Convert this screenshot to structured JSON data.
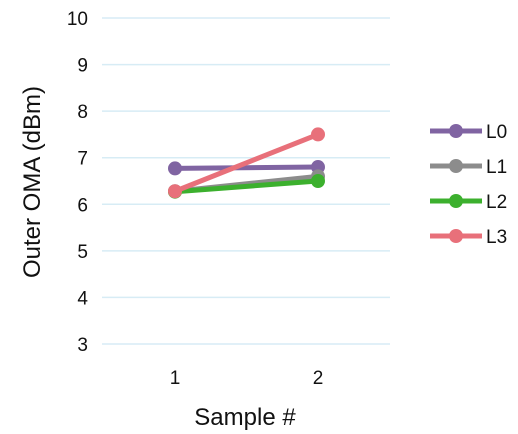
{
  "chart_data": {
    "type": "line",
    "xlabel": "Sample #",
    "ylabel": "Outer OMA (dBm)",
    "x": [
      1,
      2
    ],
    "ylim": [
      3,
      10
    ],
    "yticks": [
      3,
      4,
      5,
      6,
      7,
      8,
      9,
      10
    ],
    "grid": true,
    "legend_position": "right",
    "series": [
      {
        "name": "L0",
        "values": [
          6.77,
          6.8
        ],
        "color": "#8064a2"
      },
      {
        "name": "L1",
        "values": [
          6.28,
          6.6
        ],
        "color": "#8c8c8c"
      },
      {
        "name": "L2",
        "values": [
          6.27,
          6.5
        ],
        "color": "#3cb02e"
      },
      {
        "name": "L3",
        "values": [
          6.28,
          7.5
        ],
        "color": "#e8707a"
      }
    ],
    "gridline_color": "#d7ecf5"
  }
}
